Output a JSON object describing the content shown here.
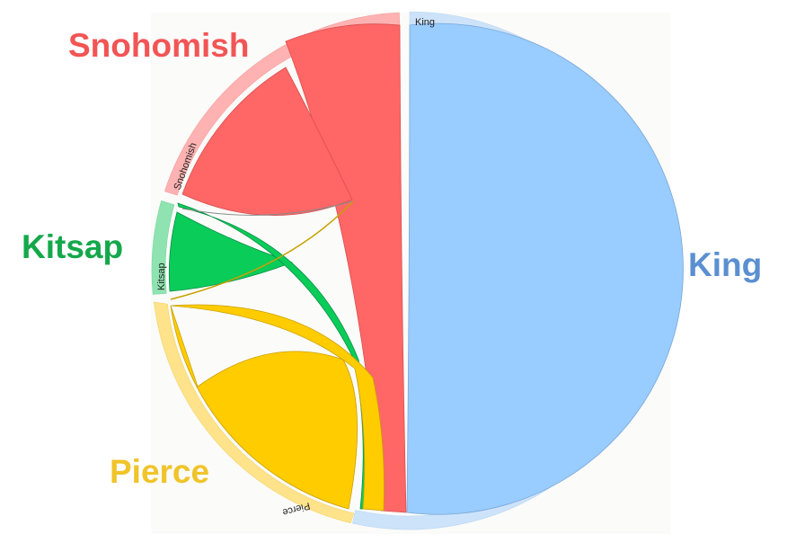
{
  "diagram": {
    "nodes": [
      {
        "id": "king",
        "big_label": "King",
        "arc_label": "King",
        "color": "#99ccff",
        "ring_color": "#cce3fa",
        "label_color": "#5b8fd1",
        "share": 0.54
      },
      {
        "id": "pierce",
        "big_label": "Pierce",
        "arc_label": "Pierce",
        "color": "#ffcc00",
        "ring_color": "#ffe38a",
        "label_color": "#f0c42a",
        "share": 0.2
      },
      {
        "id": "kitsap",
        "big_label": "Kitsap",
        "arc_label": "Kitsap",
        "color": "#0acc59",
        "ring_color": "#8fe3b0",
        "label_color": "#14a84a",
        "share": 0.08
      },
      {
        "id": "snohomish",
        "big_label": "Snohomish",
        "arc_label": "Snohomish",
        "color": "#ff6666",
        "ring_color": "#ffb2b2",
        "label_color": "#f25555",
        "share": 0.18
      }
    ]
  }
}
